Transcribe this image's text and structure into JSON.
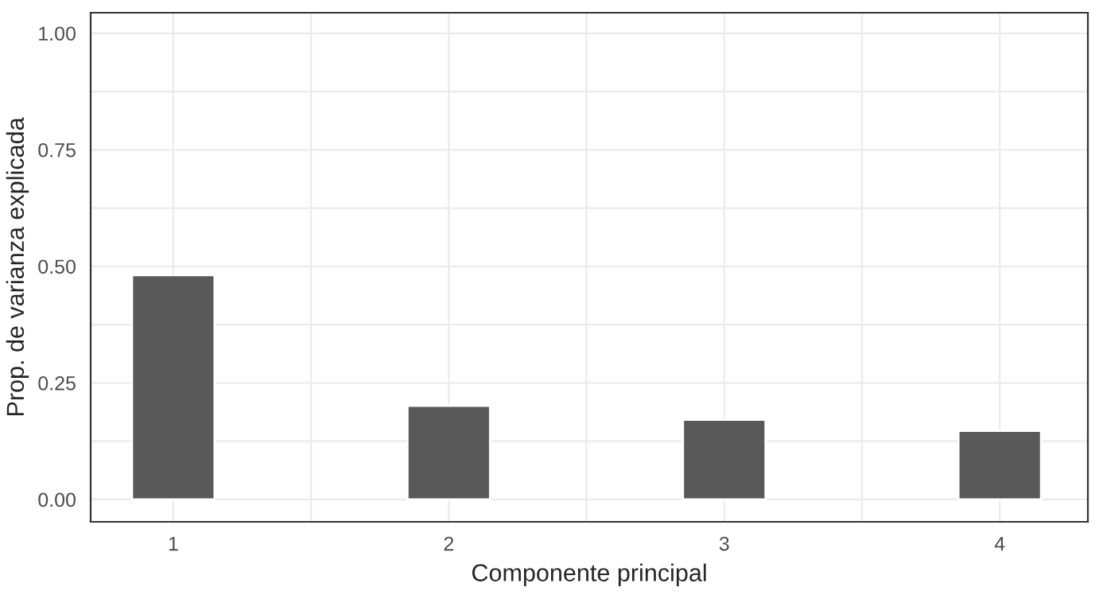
{
  "chart_data": {
    "type": "bar",
    "xlabel": "Componente principal",
    "ylabel": "Prop. de varianza explicada",
    "x": [
      1,
      2,
      3,
      4
    ],
    "values": [
      0.481,
      0.201,
      0.171,
      0.147
    ],
    "color": "#595959",
    "xlim": [
      0.7,
      4.32
    ],
    "xticks": [
      1,
      2,
      3,
      4
    ],
    "ylim": [
      -0.048,
      1.044
    ],
    "yticks": [
      {
        "value": 0,
        "label": "0.00"
      },
      {
        "value": 0.25,
        "label": "0.25"
      },
      {
        "value": 0.5,
        "label": "0.50"
      },
      {
        "value": 0.75,
        "label": "0.75"
      },
      {
        "value": 1,
        "label": "1.00"
      }
    ],
    "grid": true
  }
}
